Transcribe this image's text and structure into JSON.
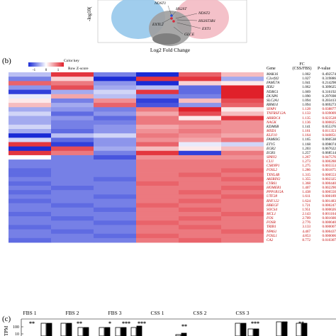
{
  "volcano": {
    "y_axis": "-log10(",
    "x_axis": "Log2 Fold Change",
    "genes": [
      "NDST1",
      "HS2ST",
      "NDST2",
      "EXTL2",
      "HS3ST3B1",
      "EXT1",
      "GLCE"
    ]
  },
  "panel_b_label": "(b)",
  "panel_c_label": "(c)",
  "color_key": {
    "title": "Color key",
    "ticks": [
      "-1",
      "0",
      "1"
    ],
    "caption": "Row Z-score"
  },
  "table_headers": {
    "gene": "Gene",
    "fc_line1": "FC",
    "fc_line2": "(CSS/FBS)",
    "pvalue": "P-value"
  },
  "rows": [
    {
      "gene": "MAK16",
      "fc": "1.002",
      "p": "0.492574",
      "sig": false
    },
    {
      "gene": "C2orf42",
      "fc": "1.027",
      "p": "0.319886",
      "sig": false
    },
    {
      "gene": "FAM57A",
      "fc": "1.041",
      "p": "0.214298",
      "sig": false
    },
    {
      "gene": "IER2",
      "fc": "1.062",
      "p": "0.309625",
      "sig": false
    },
    {
      "gene": "NDRG1",
      "fc": "1.069",
      "p": "0.316192",
      "sig": false
    },
    {
      "gene": "DUSP6",
      "fc": "1.090",
      "p": "0.297698",
      "sig": false
    },
    {
      "gene": "SLC2A1",
      "fc": "1.094",
      "p": "0.203413",
      "sig": false
    },
    {
      "gene": "RBM14",
      "fc": "1.094",
      "p": "0.069273",
      "sig": false
    },
    {
      "gene": "SFAP1",
      "fc": "1.128",
      "p": "0.038877",
      "sig": true
    },
    {
      "gene": "TNFRSF12A",
      "fc": "1.133",
      "p": "0.039009",
      "sig": true
    },
    {
      "gene": "ARRDC4",
      "fc": "1.135",
      "p": "0.023528",
      "sig": true
    },
    {
      "gene": "NAGK",
      "fc": "1.136",
      "p": "0.000825",
      "sig": true
    },
    {
      "gene": "KDM6B",
      "fc": "1.141",
      "p": "0.055376",
      "sig": false
    },
    {
      "gene": "MXD1",
      "fc": "1.161",
      "p": "0.011353",
      "sig": true
    },
    {
      "gene": "KLF10",
      "fc": "1.164",
      "p": "0.040851",
      "sig": true
    },
    {
      "gene": "FAM83G",
      "fc": "1.165",
      "p": "0.060538",
      "sig": false
    },
    {
      "gene": "ETV5",
      "fc": "1.168",
      "p": "0.098074",
      "sig": false
    },
    {
      "gene": "EGR2",
      "fc": "1.203",
      "p": "0.067622",
      "sig": false
    },
    {
      "gene": "EGR1",
      "fc": "1.257",
      "p": "0.068514",
      "sig": false
    },
    {
      "gene": "SPRY2",
      "fc": "1.267",
      "p": "0.047576",
      "sig": true
    },
    {
      "gene": "CLU",
      "fc": "1.273",
      "p": "0.000288",
      "sig": true
    },
    {
      "gene": "CSRNP1",
      "fc": "1.275",
      "p": "0.005553",
      "sig": true
    },
    {
      "gene": "FOSL2",
      "fc": "1.286",
      "p": "0.001875",
      "sig": true
    },
    {
      "gene": "TXNL4B",
      "fc": "1.315",
      "p": "0.000553",
      "sig": true
    },
    {
      "gene": "AKIRIN2",
      "fc": "1.355",
      "p": "0.002325",
      "sig": true
    },
    {
      "gene": "CYR61",
      "fc": "1.368",
      "p": "0.000440",
      "sig": true
    },
    {
      "gene": "HOMER1",
      "fc": "1.407",
      "p": "0.002290",
      "sig": true
    },
    {
      "gene": "PPP1R15A",
      "fc": "1.438",
      "p": "0.006550",
      "sig": true
    },
    {
      "gene": "UTF28",
      "fc": "1.611",
      "p": "0.000189",
      "sig": true
    },
    {
      "gene": "RNF122",
      "fc": "1.624",
      "p": "0.001483",
      "sig": true
    },
    {
      "gene": "HBEGF",
      "fc": "1.721",
      "p": "0.000247",
      "sig": true
    },
    {
      "gene": "SOCS4",
      "fc": "1.951",
      "p": "0.000026",
      "sig": true
    },
    {
      "gene": "MCL1",
      "fc": "2.143",
      "p": "0.001104",
      "sig": true
    },
    {
      "gene": "FOS",
      "fc": "2.709",
      "p": "0.001600",
      "sig": true
    },
    {
      "gene": "FOSB",
      "fc": "2.776",
      "p": "0.000040",
      "sig": true
    },
    {
      "gene": "TRIB1",
      "fc": "3.133",
      "p": "0.000007",
      "sig": true
    },
    {
      "gene": "NPAS1",
      "fc": "4.467",
      "p": "0.000437",
      "sig": true
    },
    {
      "gene": "FOSL1",
      "fc": "4.853",
      "p": "0.000006",
      "sig": true
    },
    {
      "gene": "CA2",
      "fc": "8.772",
      "p": "0.010307",
      "sig": true
    }
  ],
  "heat_z": [
    [
      -0.3,
      0.9,
      -0.6,
      -1,
      0.7,
      0.3
    ],
    [
      -0.6,
      0.2,
      -1,
      0.9,
      0.9,
      -0.4
    ],
    [
      0.7,
      0.6,
      -0.5,
      -1,
      0.2,
      0.1
    ],
    [
      -0.5,
      0.8,
      -0.4,
      -0.3,
      -0.7,
      1
    ],
    [
      -0.9,
      -0.4,
      -0.2,
      0.9,
      -0.7,
      1
    ],
    [
      -0.1,
      0.4,
      -0.3,
      -0.6,
      -0.6,
      1
    ],
    [
      0.1,
      -0.6,
      0.5,
      -0.9,
      0.3,
      0.8
    ],
    [
      0.3,
      -0.4,
      0.7,
      -0.8,
      -0.5,
      0.7
    ],
    [
      -0.4,
      -0.5,
      -0.6,
      0.6,
      1,
      0.1
    ],
    [
      -0.2,
      -0.7,
      -0.5,
      0.4,
      0.8,
      0.3
    ],
    [
      -0.4,
      -0.5,
      -0.7,
      0.6,
      0.1,
      0.9
    ],
    [
      -0.4,
      -0.6,
      -0.6,
      0.6,
      0.6,
      0.5
    ],
    [
      -0.2,
      -0.6,
      -0.5,
      0.4,
      0.5,
      0.5
    ],
    [
      -0.4,
      -0.7,
      -0.5,
      0.5,
      0.6,
      0.5
    ],
    [
      -1,
      -0.3,
      -0.2,
      0.6,
      0.5,
      0.4
    ],
    [
      -0.2,
      -0.7,
      -0.5,
      0.5,
      0.4,
      0.6
    ],
    [
      0.9,
      -0.9,
      -0.5,
      0.7,
      -0.1,
      -0.2
    ],
    [
      -1,
      0.8,
      -0.4,
      0.3,
      0.1,
      0.3
    ],
    [
      0.9,
      0.6,
      -0.6,
      0.9,
      -0.9,
      0.6
    ],
    [
      0.0,
      -0.6,
      -0.8,
      0.5,
      0.5,
      0.5
    ],
    [
      -0.6,
      -0.6,
      -0.6,
      0.6,
      0.6,
      0.6
    ],
    [
      -0.6,
      -0.6,
      -0.6,
      0.6,
      0.6,
      0.6
    ],
    [
      -0.7,
      -0.6,
      -0.6,
      0.6,
      0.6,
      0.7
    ],
    [
      -0.7,
      -0.6,
      -0.6,
      0.6,
      0.7,
      0.6
    ],
    [
      -0.6,
      -0.6,
      -0.7,
      0.6,
      0.6,
      0.7
    ],
    [
      -0.7,
      -0.6,
      -0.6,
      0.7,
      0.6,
      0.6
    ],
    [
      -0.6,
      -0.7,
      -0.6,
      0.6,
      0.6,
      0.7
    ],
    [
      -0.7,
      -0.6,
      -0.6,
      0.6,
      0.7,
      0.6
    ],
    [
      -0.6,
      -0.6,
      -0.7,
      0.6,
      0.6,
      0.7
    ],
    [
      -0.7,
      -0.6,
      -0.6,
      0.6,
      0.7,
      0.6
    ],
    [
      -0.6,
      -0.7,
      -0.6,
      0.7,
      0.6,
      0.6
    ],
    [
      -0.6,
      -0.6,
      -0.7,
      0.6,
      0.7,
      0.6
    ],
    [
      -0.7,
      -0.6,
      -0.6,
      0.6,
      0.6,
      0.7
    ],
    [
      -0.6,
      -0.7,
      -0.6,
      0.6,
      0.7,
      0.6
    ],
    [
      -0.6,
      -0.6,
      -0.7,
      0.7,
      0.6,
      0.6
    ],
    [
      -0.7,
      -0.6,
      -0.6,
      0.6,
      0.7,
      0.6
    ],
    [
      -0.6,
      -0.7,
      -0.6,
      0.6,
      0.6,
      0.7
    ],
    [
      -0.6,
      -0.6,
      -0.7,
      0.7,
      0.6,
      0.6
    ],
    [
      -0.7,
      -0.6,
      -0.6,
      0.6,
      0.7,
      0.6
    ]
  ],
  "samples": [
    "FBS 1",
    "FBS 2",
    "FBS 3",
    "CSS 1",
    "CSS 2",
    "CSS 3"
  ],
  "bar_chart": {
    "ylabel": "TPM",
    "y_ticks": [
      "100",
      "10",
      "1"
    ],
    "stars": [
      "**",
      "**",
      "*",
      "***",
      "***",
      "**",
      "***",
      "**",
      "**"
    ]
  }
}
